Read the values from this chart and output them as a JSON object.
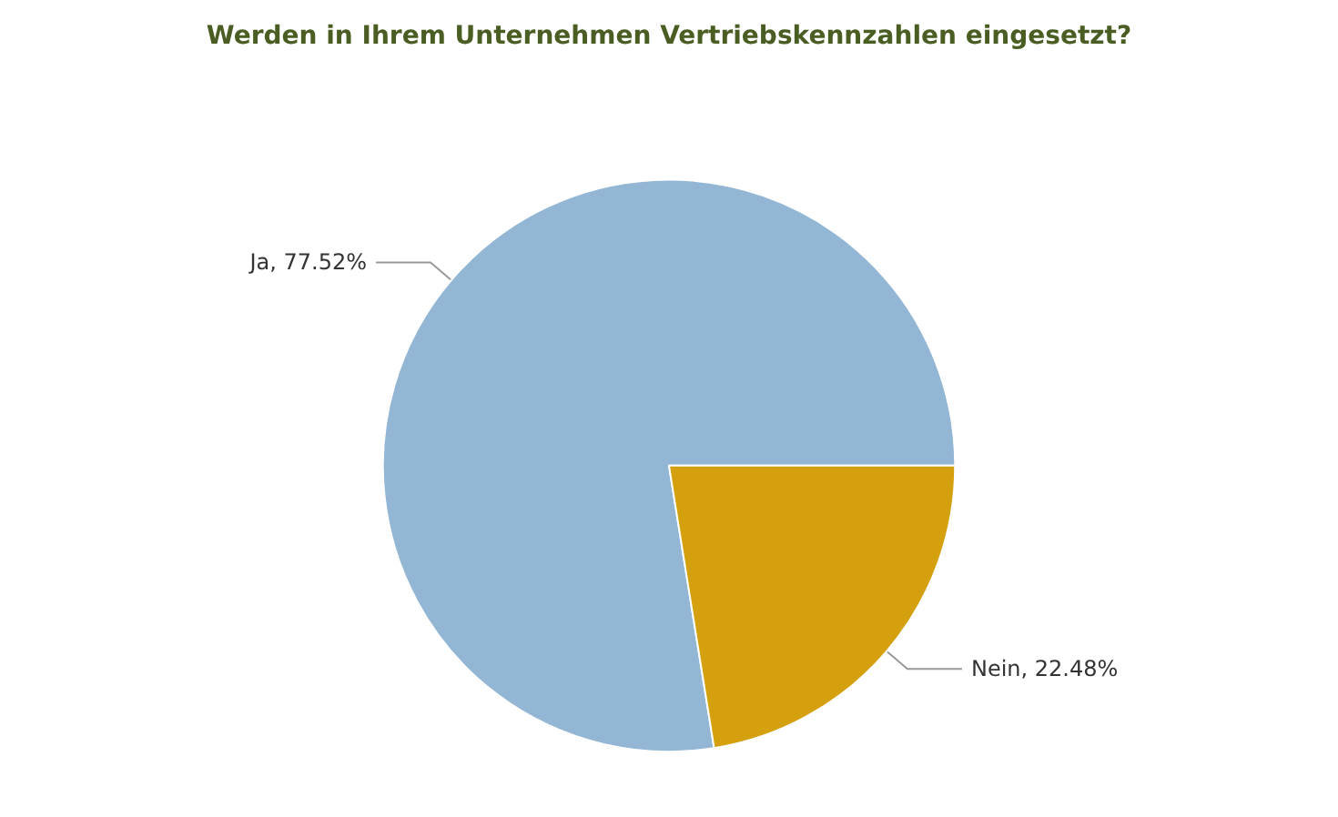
{
  "chart_data": {
    "type": "pie",
    "title": "Werden in Ihrem Unternehmen Vertriebskennzahlen eingesetzt?",
    "categories": [
      "Ja",
      "Nein"
    ],
    "values": [
      77.52,
      22.48
    ],
    "colors": [
      "#93b6d4",
      "#d4a00e"
    ],
    "value_labels": [
      ", 77.52%",
      ", 22.48%"
    ],
    "legend": false
  }
}
